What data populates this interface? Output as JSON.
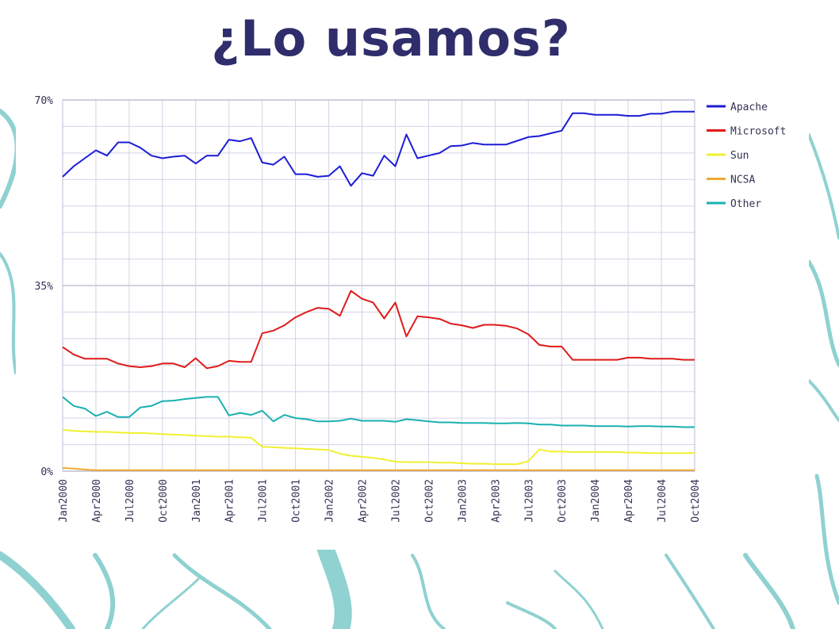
{
  "slide": {
    "title": "¿Lo usamos?"
  },
  "colors": {
    "title": "#2f2d6b",
    "grid": "#d3d3e6",
    "background_decoration": "#6cc6c6"
  },
  "chart_data": {
    "type": "line",
    "title": "",
    "xlabel": "",
    "ylabel": "",
    "ylim": [
      0,
      70
    ],
    "y_ticks": [
      "0%",
      "35%",
      "70%"
    ],
    "y_tick_values": [
      0,
      35,
      70
    ],
    "grid": true,
    "legend_position": "right",
    "x": [
      "Jan2000",
      "Feb2000",
      "Mar2000",
      "Apr2000",
      "May2000",
      "Jun2000",
      "Jul2000",
      "Aug2000",
      "Sep2000",
      "Oct2000",
      "Nov2000",
      "Dec2000",
      "Jan2001",
      "Feb2001",
      "Mar2001",
      "Apr2001",
      "May2001",
      "Jun2001",
      "Jul2001",
      "Aug2001",
      "Sep2001",
      "Oct2001",
      "Nov2001",
      "Dec2001",
      "Jan2002",
      "Feb2002",
      "Mar2002",
      "Apr2002",
      "May2002",
      "Jun2002",
      "Jul2002",
      "Aug2002",
      "Sep2002",
      "Oct2002",
      "Nov2002",
      "Dec2002",
      "Jan2003",
      "Feb2003",
      "Mar2003",
      "Apr2003",
      "May2003",
      "Jun2003",
      "Jul2003",
      "Aug2003",
      "Sep2003",
      "Oct2003",
      "Nov2003",
      "Dec2003",
      "Jan2004",
      "Feb2004",
      "Mar2004",
      "Apr2004",
      "May2004",
      "Jun2004",
      "Jul2004",
      "Aug2004",
      "Sep2004",
      "Oct2004"
    ],
    "x_tick_labels": [
      "Jan2000",
      "Apr2000",
      "Jul2000",
      "Oct2000",
      "Jan2001",
      "Apr2001",
      "Jul2001",
      "Oct2001",
      "Jan2002",
      "Apr2002",
      "Jul2002",
      "Oct2002",
      "Jan2003",
      "Apr2003",
      "Jul2003",
      "Oct2003",
      "Jan2004",
      "Apr2004",
      "Jul2004",
      "Oct2004"
    ],
    "series": [
      {
        "name": "Apache",
        "color": "#1c1cd6",
        "values": [
          55.5,
          57.5,
          59,
          60.5,
          59.5,
          62,
          62,
          61,
          59.5,
          59,
          59.3,
          59.5,
          58,
          59.5,
          59.5,
          62.5,
          62.2,
          62.8,
          58.2,
          57.8,
          59.3,
          56,
          56,
          55.5,
          55.7,
          57.5,
          53.8,
          56.2,
          55.7,
          59.5,
          57.5,
          63.5,
          59,
          59.5,
          60,
          61.3,
          61.4,
          61.9,
          61.6,
          61.6,
          61.6,
          62.3,
          63,
          63.2,
          63.7,
          64.2,
          67.5,
          67.5,
          67.2,
          67.2,
          67.2,
          67,
          67,
          67.4,
          67.4,
          67.8,
          67.8,
          67.8
        ]
      },
      {
        "name": "Microsoft",
        "color": "#e01a1a",
        "values": [
          23.4,
          22,
          21.2,
          21.2,
          21.2,
          20.3,
          19.8,
          19.6,
          19.8,
          20.3,
          20.3,
          19.6,
          21.3,
          19.4,
          19.8,
          20.8,
          20.6,
          20.6,
          26,
          26.5,
          27.5,
          29,
          30,
          30.8,
          30.6,
          29.3,
          34,
          32.5,
          31.8,
          28.8,
          31.8,
          25.4,
          29.2,
          29,
          28.7,
          27.8,
          27.5,
          27,
          27.6,
          27.6,
          27.4,
          26.9,
          25.8,
          23.8,
          23.5,
          23.5,
          21,
          21,
          21,
          21,
          21,
          21.4,
          21.4,
          21.2,
          21.2,
          21.2,
          21,
          21
        ]
      },
      {
        "name": "Sun",
        "color": "#f0f030",
        "values": [
          7.8,
          7.6,
          7.5,
          7.4,
          7.4,
          7.3,
          7.2,
          7.2,
          7.1,
          7,
          6.9,
          6.8,
          6.7,
          6.6,
          6.5,
          6.5,
          6.4,
          6.3,
          4.6,
          4.5,
          4.4,
          4.3,
          4.2,
          4.1,
          4,
          3.3,
          2.9,
          2.7,
          2.5,
          2.2,
          1.8,
          1.7,
          1.7,
          1.7,
          1.6,
          1.6,
          1.5,
          1.4,
          1.4,
          1.3,
          1.3,
          1.3,
          1.9,
          4.1,
          3.7,
          3.7,
          3.6,
          3.6,
          3.6,
          3.6,
          3.6,
          3.5,
          3.5,
          3.4,
          3.4,
          3.4,
          3.4,
          3.4
        ]
      },
      {
        "name": "NCSA",
        "color": "#f0a830",
        "values": [
          0.6,
          0.5,
          0.3,
          0.2,
          0.2,
          0.2,
          0.2,
          0.2,
          0.2,
          0.2,
          0.2,
          0.2,
          0.2,
          0.2,
          0.2,
          0.2,
          0.2,
          0.2,
          0.2,
          0.2,
          0.2,
          0.2,
          0.2,
          0.2,
          0.2,
          0.2,
          0.2,
          0.2,
          0.2,
          0.2,
          0.2,
          0.2,
          0.2,
          0.2,
          0.2,
          0.2,
          0.2,
          0.2,
          0.2,
          0.2,
          0.2,
          0.2,
          0.2,
          0.2,
          0.2,
          0.2,
          0.2,
          0.2,
          0.2,
          0.2,
          0.2,
          0.2,
          0.2,
          0.2,
          0.2,
          0.2,
          0.2,
          0.2
        ]
      },
      {
        "name": "Other",
        "color": "#1ab0b0",
        "values": [
          14,
          12.3,
          11.8,
          10.4,
          11.2,
          10.2,
          10.2,
          12,
          12.3,
          13.2,
          13.3,
          13.6,
          13.8,
          14,
          14,
          10.5,
          11,
          10.6,
          11.4,
          9.4,
          10.6,
          10,
          9.8,
          9.4,
          9.4,
          9.5,
          9.9,
          9.5,
          9.5,
          9.5,
          9.3,
          9.8,
          9.6,
          9.4,
          9.2,
          9.2,
          9.1,
          9.1,
          9.1,
          9,
          9,
          9.1,
          9,
          8.8,
          8.8,
          8.6,
          8.6,
          8.6,
          8.5,
          8.5,
          8.5,
          8.4,
          8.5,
          8.5,
          8.4,
          8.4,
          8.3,
          8.3
        ]
      }
    ]
  }
}
